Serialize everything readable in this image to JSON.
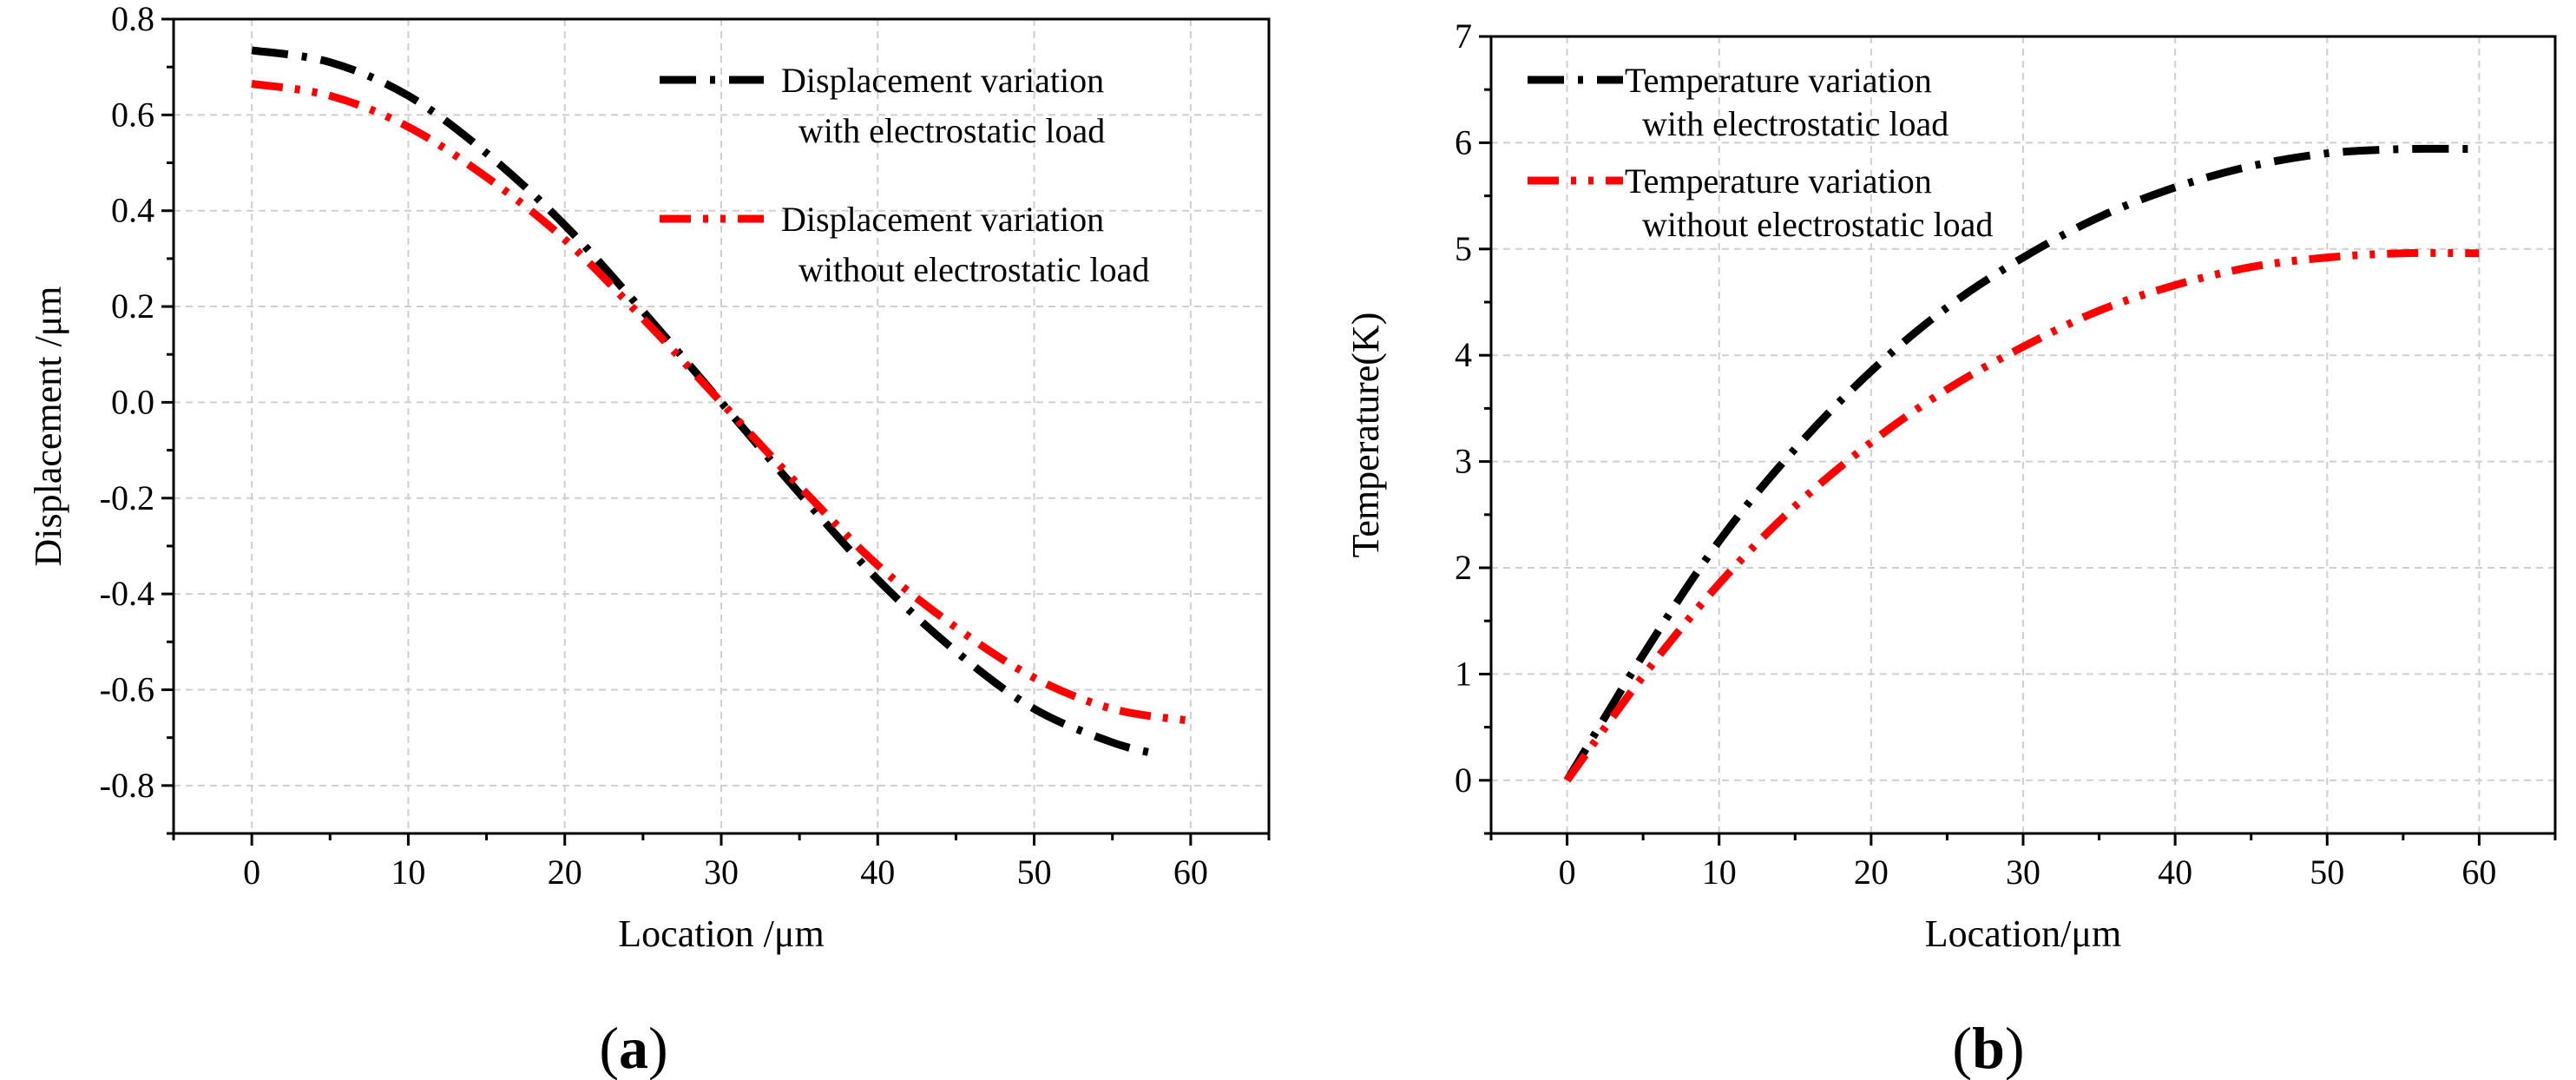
{
  "chart_data": [
    {
      "type": "line",
      "panel_label": "a",
      "xlabel": "Location /μm",
      "ylabel": "Displacement /μm",
      "xlim": [
        -5,
        65
      ],
      "ylim": [
        -0.9,
        0.8
      ],
      "xticks": [
        0,
        10,
        20,
        30,
        40,
        50,
        60
      ],
      "yticks": [
        -0.8,
        -0.6,
        -0.4,
        -0.2,
        0.0,
        0.2,
        0.4,
        0.6,
        0.8
      ],
      "ytick_labels": [
        "-0.8",
        "-0.6",
        "-0.4",
        "-0.2",
        "0.0",
        "0.2",
        "0.4",
        "0.6",
        "0.8"
      ],
      "grid": true,
      "legend_position": "top-right",
      "series": [
        {
          "name": "Displacement variation with electrostatic load",
          "legend_lines": [
            "Displacement variation",
            "with electrostatic load"
          ],
          "color": "#000000",
          "style": "dash-dot",
          "x": [
            0,
            5,
            10,
            15,
            20,
            25,
            30,
            35,
            40,
            45,
            50,
            55,
            58
          ],
          "y": [
            0.735,
            0.71,
            0.64,
            0.52,
            0.37,
            0.19,
            0.0,
            -0.19,
            -0.37,
            -0.52,
            -0.64,
            -0.71,
            -0.735
          ]
        },
        {
          "name": "Displacement variation without electrostatic load",
          "legend_lines": [
            "Displacement variation",
            "without electrostatic load"
          ],
          "color": "#ff0000",
          "style": "dash-dot-dot",
          "x": [
            0,
            5,
            10,
            15,
            20,
            25,
            30,
            35,
            40,
            45,
            50,
            55,
            60
          ],
          "y": [
            0.665,
            0.64,
            0.575,
            0.47,
            0.34,
            0.175,
            0.0,
            -0.175,
            -0.34,
            -0.47,
            -0.575,
            -0.64,
            -0.665
          ]
        }
      ]
    },
    {
      "type": "line",
      "panel_label": "b",
      "xlabel": "Location/μm",
      "ylabel": "Temperature(K)",
      "xlim": [
        -5,
        65
      ],
      "ylim": [
        -0.5,
        7
      ],
      "xticks": [
        0,
        10,
        20,
        30,
        40,
        50,
        60
      ],
      "yticks": [
        0,
        1,
        2,
        3,
        4,
        5,
        6,
        7
      ],
      "ytick_labels": [
        "0",
        "1",
        "2",
        "3",
        "4",
        "5",
        "6",
        "7"
      ],
      "grid": true,
      "legend_position": "top-left",
      "series": [
        {
          "name": "Temperature variation with electrostatic load",
          "legend_lines": [
            "Temperature variation",
            "with electrostatic load"
          ],
          "color": "#000000",
          "style": "dash-dot",
          "x": [
            0,
            5,
            10,
            15,
            20,
            25,
            30,
            35,
            40,
            45,
            50,
            55,
            60
          ],
          "y": [
            0,
            1.18,
            2.25,
            3.12,
            3.85,
            4.45,
            4.92,
            5.3,
            5.58,
            5.78,
            5.9,
            5.94,
            5.94
          ]
        },
        {
          "name": "Temperature variation without electrostatic load",
          "legend_lines": [
            "Temperature variation",
            "without electrostatic load"
          ],
          "color": "#ff0000",
          "style": "dash-dot-dot",
          "x": [
            0,
            5,
            10,
            15,
            20,
            25,
            30,
            35,
            40,
            45,
            50,
            55,
            60
          ],
          "y": [
            0,
            0.98,
            1.85,
            2.58,
            3.18,
            3.68,
            4.08,
            4.42,
            4.66,
            4.83,
            4.92,
            4.96,
            4.96
          ]
        }
      ]
    }
  ]
}
